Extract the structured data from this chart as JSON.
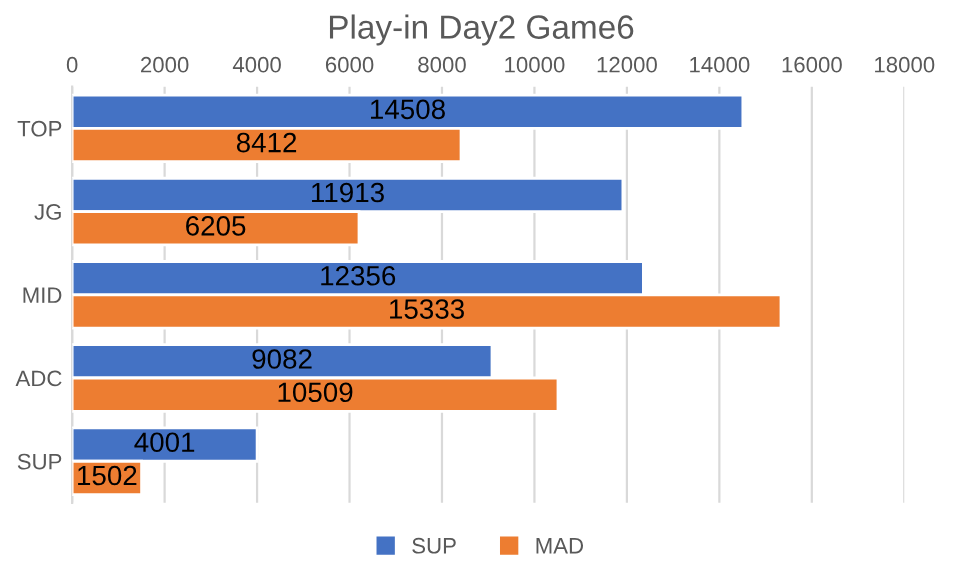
{
  "chart_data": {
    "type": "bar",
    "orientation": "horizontal",
    "title": "Play-in Day2 Game6",
    "categories": [
      "TOP",
      "JG",
      "MID",
      "ADC",
      "SUP"
    ],
    "series": [
      {
        "name": "SUP",
        "color": "#4472c4",
        "values": [
          14508,
          11913,
          12356,
          9082,
          4001
        ]
      },
      {
        "name": "MAD",
        "color": "#ed7d31",
        "values": [
          8412,
          6205,
          15333,
          10509,
          1502
        ]
      }
    ],
    "xlim": [
      0,
      18000
    ],
    "xticks": [
      0,
      2000,
      4000,
      6000,
      8000,
      10000,
      12000,
      14000,
      16000,
      18000
    ],
    "grid": "x",
    "legend": "bottom",
    "data_labels": true
  }
}
